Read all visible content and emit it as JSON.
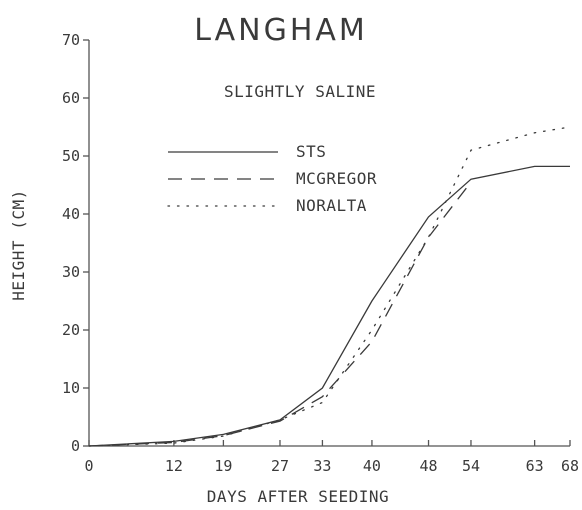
{
  "chart_data": {
    "type": "line",
    "title": "LANGHAM",
    "subtitle": "SLIGHTLY SALINE",
    "xlabel": "DAYS AFTER SEEDING",
    "ylabel": "HEIGHT (CM)",
    "x": [
      0,
      12,
      19,
      27,
      33,
      40,
      48,
      54,
      63,
      68
    ],
    "x_ticks": [
      "0",
      "12",
      "19",
      "27",
      "33",
      "40",
      "48",
      "54",
      "63",
      "68"
    ],
    "y_ticks": [
      "0",
      "10",
      "20",
      "30",
      "40",
      "50",
      "60",
      "70"
    ],
    "xlim": [
      0,
      68
    ],
    "ylim": [
      0,
      70
    ],
    "legend_position": "upper-left",
    "series": [
      {
        "name": "STS",
        "style": "solid",
        "values": [
          0,
          0.8,
          2,
          4.5,
          10,
          25,
          39.5,
          46,
          48.2,
          48.2
        ]
      },
      {
        "name": "MCGREGOR",
        "style": "dashed",
        "values": [
          0,
          0.6,
          1.8,
          4.3,
          8.5,
          18,
          36,
          45.5,
          null,
          null
        ]
      },
      {
        "name": "NORALTA",
        "style": "dotted",
        "values": [
          0,
          0.5,
          1.7,
          4.5,
          7.5,
          20,
          36,
          51,
          54,
          55
        ]
      }
    ]
  }
}
